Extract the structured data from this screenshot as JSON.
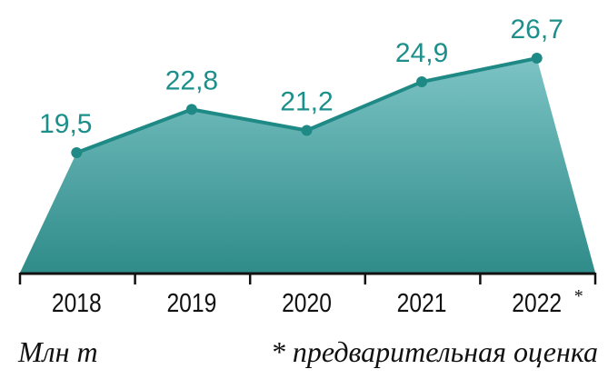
{
  "chart_data": {
    "type": "area",
    "categories": [
      "2018",
      "2019",
      "2020",
      "2021",
      "2022*"
    ],
    "values": [
      19.5,
      22.8,
      21.2,
      24.9,
      26.7
    ],
    "data_labels": [
      "19,5",
      "22,8",
      "21,2",
      "24,9",
      "26,7"
    ],
    "title": "",
    "xlabel": "",
    "ylabel": "",
    "unit_label": "Млн т",
    "footnote": "* предварительная оценка",
    "grid": false,
    "legend": "none",
    "colors": {
      "line": "#1f8a85",
      "fill_top": "#7cc3c5",
      "fill_bottom": "#2f8c89",
      "label": "#1d8f8b",
      "axis": "#111111"
    }
  }
}
